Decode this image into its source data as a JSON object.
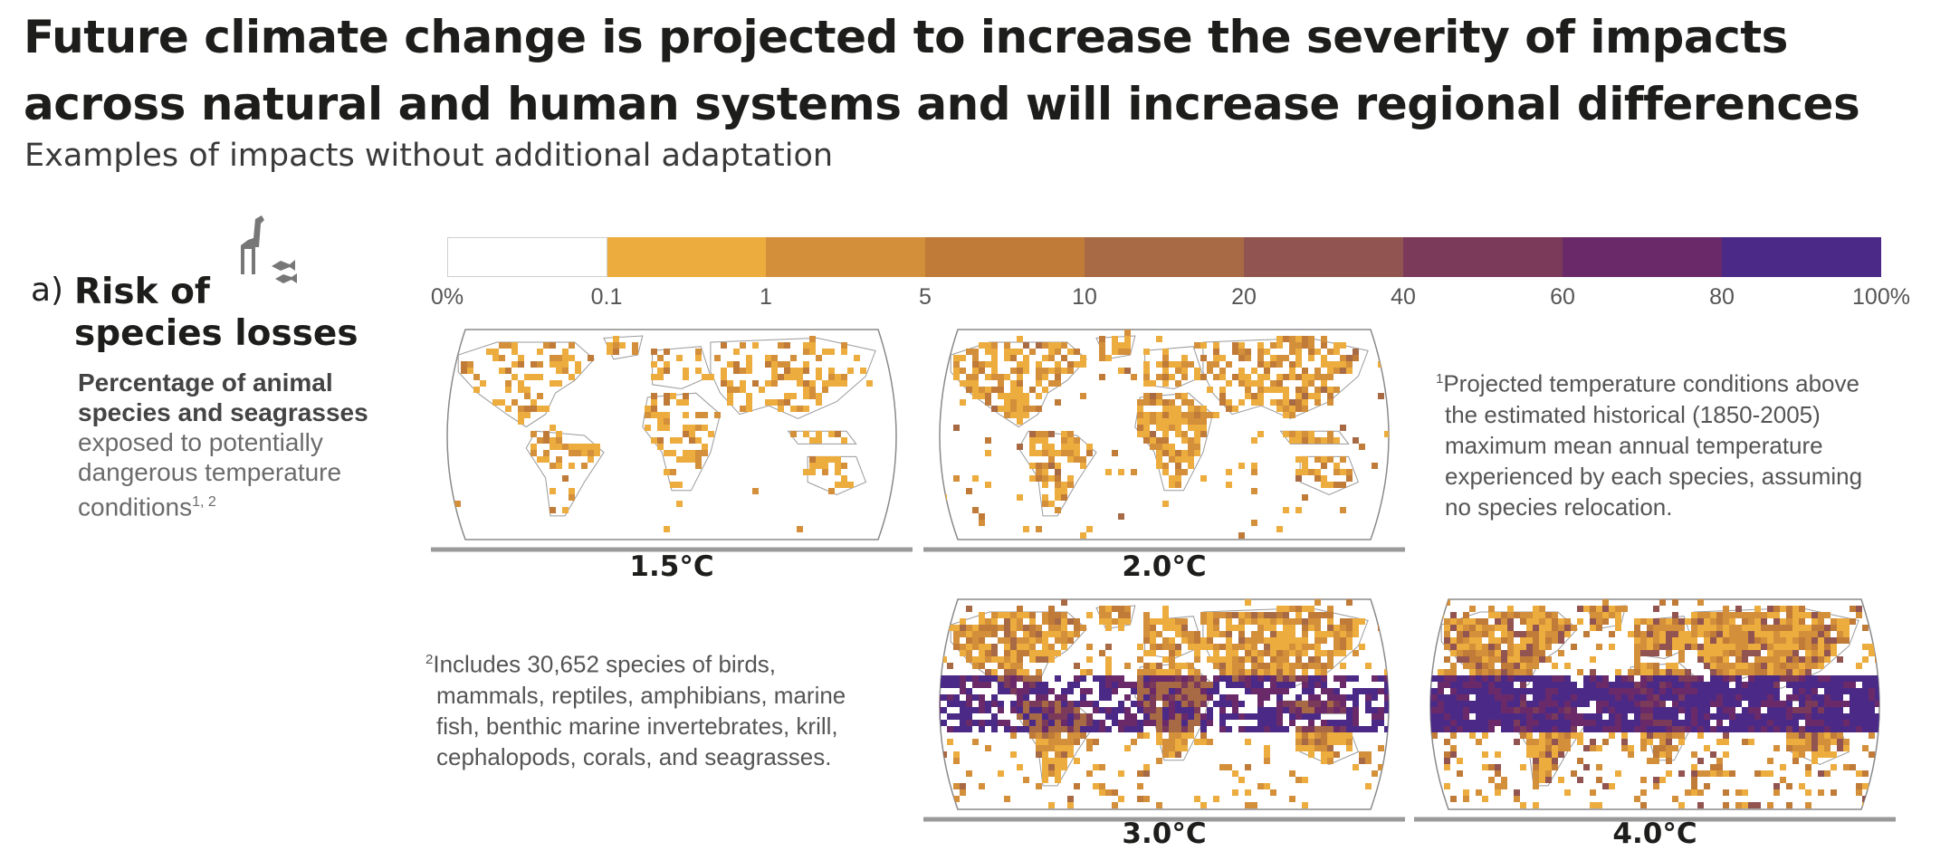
{
  "header": {
    "title_line1": "Future climate change is projected to increase the severity of impacts",
    "title_line2": "across natural and human systems and will increase regional differences",
    "subtitle": "Examples of impacts without additional adaptation"
  },
  "section": {
    "prefix": "a)",
    "title_line1": "Risk of",
    "title_line2": "species losses",
    "desc_bold1": "Percentage of animal",
    "desc_bold2": "species and seagrasses",
    "desc_line3": "exposed to potentially",
    "desc_line4": "dangerous temperature",
    "desc_line5": "conditions",
    "desc_sup": "1, 2",
    "icon": "giraffe-fish-icon"
  },
  "legend": {
    "ticks": [
      "0%",
      "0.1",
      "1",
      "5",
      "10",
      "20",
      "40",
      "60",
      "80",
      "100%"
    ],
    "colors": [
      "#ffffff",
      "#ecac3e",
      "#d48f3a",
      "#c07b38",
      "#a86a45",
      "#925450",
      "#7b3a5a",
      "#6a2a6a",
      "#4a2a86"
    ]
  },
  "maps": [
    {
      "label": "1.5°C",
      "intensity": 1
    },
    {
      "label": "2.0°C",
      "intensity": 2
    },
    {
      "label": "3.0°C",
      "intensity": 3
    },
    {
      "label": "4.0°C",
      "intensity": 4
    }
  ],
  "notes": {
    "note1_sup": "1",
    "note1_lines": [
      "Projected temperature conditions above",
      "the estimated historical (1850-2005)",
      "maximum mean annual temperature",
      "experienced by each species, assuming",
      "no species relocation."
    ],
    "note2_sup": "2",
    "note2_lines": [
      "Includes 30,652 species of birds,",
      "mammals, reptiles, amphibians, marine",
      "fish, benthic marine invertebrates, krill,",
      "cephalopods, corals, and seagrasses."
    ]
  }
}
